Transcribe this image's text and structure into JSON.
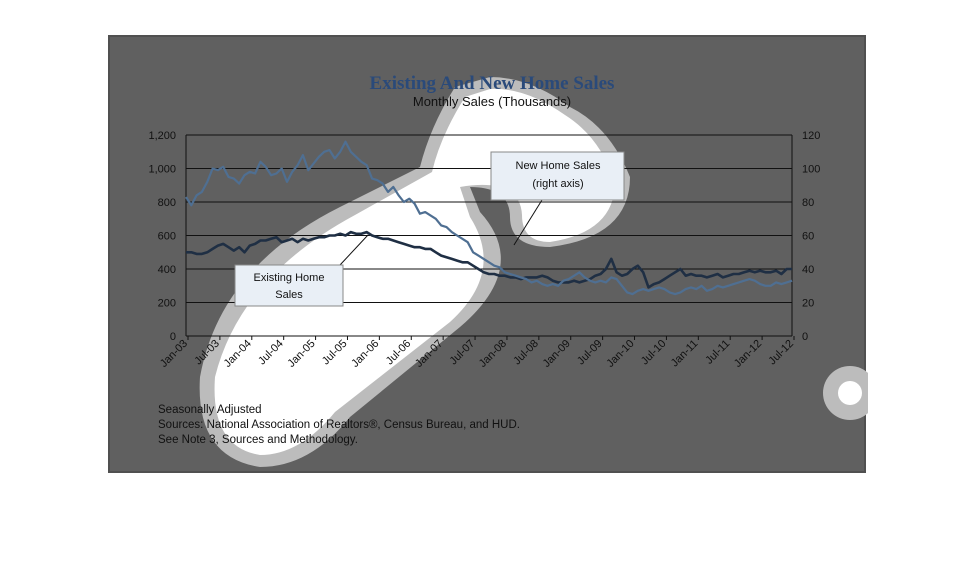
{
  "chart_data": {
    "type": "line",
    "title": "Existing And New Home Sales",
    "subtitle": "Monthly Sales (Thousands)",
    "x_tick_labels": [
      "Jan-03",
      "Jul-03",
      "Jan-04",
      "Jul-04",
      "Jan-05",
      "Jul-05",
      "Jan-06",
      "Jul-06",
      "Jan-07",
      "Jul-07",
      "Jan-08",
      "Jul-08",
      "Jan-09",
      "Jul-09",
      "Jan-10",
      "Jul-10",
      "Jan-11",
      "Jul-11",
      "Jan-12",
      "Jul-12"
    ],
    "y_left": {
      "ticks": [
        "0",
        "200",
        "400",
        "600",
        "800",
        "1,000",
        "1,200"
      ],
      "ylim": [
        0,
        1200
      ]
    },
    "y_right": {
      "ticks": [
        "0",
        "20",
        "40",
        "60",
        "80",
        "100",
        "120"
      ],
      "ylim": [
        0,
        120
      ]
    },
    "grid": true,
    "series": [
      {
        "name": "Existing Home Sales",
        "axis": "right",
        "color": "#1f2f44",
        "values": [
          50,
          50,
          49,
          49,
          50,
          52,
          54,
          55,
          53,
          51,
          53,
          50,
          54,
          55,
          57,
          57,
          58,
          59,
          56,
          57,
          58,
          56,
          58,
          57,
          58,
          59,
          59,
          60,
          60,
          61,
          60,
          62,
          61,
          61,
          62,
          60,
          59,
          58,
          58,
          57,
          56,
          55,
          54,
          53,
          53,
          52,
          52,
          50,
          48,
          47,
          46,
          45,
          44,
          44,
          42,
          40,
          38,
          37,
          37,
          36,
          36,
          35,
          35,
          34,
          35,
          35,
          35,
          36,
          35,
          33,
          32,
          32,
          32,
          33,
          32,
          33,
          34,
          36,
          37,
          40,
          46,
          38,
          36,
          37,
          40,
          42,
          38,
          29,
          31,
          32,
          34,
          36,
          38,
          40,
          36,
          37,
          36,
          36,
          35,
          36,
          37,
          35,
          36,
          37,
          37,
          38,
          39,
          38,
          39,
          38,
          38,
          39,
          37,
          40,
          40
        ]
      },
      {
        "name": "New Home Sales",
        "axis": "right",
        "color": "#4f6f92",
        "values": [
          83,
          78,
          84,
          86,
          92,
          100,
          99,
          101,
          95,
          94,
          91,
          96,
          98,
          97,
          104,
          101,
          96,
          97,
          100,
          92,
          98,
          102,
          108,
          99,
          103,
          107,
          110,
          111,
          106,
          110,
          116,
          110,
          107,
          104,
          102,
          94,
          93,
          91,
          86,
          89,
          84,
          80,
          82,
          79,
          73,
          74,
          72,
          70,
          66,
          65,
          62,
          60,
          58,
          56,
          50,
          48,
          46,
          44,
          42,
          41,
          38,
          37,
          36,
          35,
          34,
          32,
          33,
          31,
          30,
          31,
          30,
          33,
          34,
          36,
          38,
          35,
          33,
          32,
          33,
          32,
          35,
          34,
          30,
          26,
          25,
          27,
          28,
          27,
          28,
          29,
          28,
          26,
          25,
          26,
          28,
          29,
          28,
          30,
          27,
          28,
          30,
          29,
          30,
          31,
          32,
          33,
          34,
          33,
          31,
          30,
          30,
          32,
          31,
          32,
          33
        ]
      }
    ],
    "annotations": [
      {
        "text_lines": [
          "Existing Home",
          "Sales"
        ]
      },
      {
        "text_lines": [
          "New Home Sales",
          "(right axis)"
        ]
      }
    ]
  },
  "footnotes": {
    "line1": "Seasonally Adjusted",
    "line2": "Sources: National Association of Realtors®, Census Bureau, and HUD.",
    "line3": "See Note 3, Sources and Methodology."
  }
}
